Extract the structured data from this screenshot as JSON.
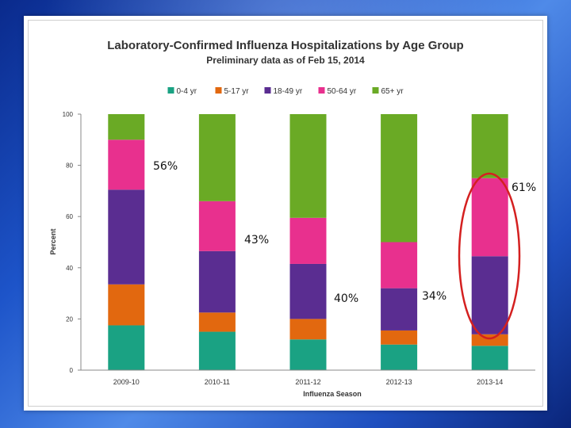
{
  "chart_data": {
    "type": "bar",
    "stacked": true,
    "title": "Laboratory-Confirmed Influenza Hospitalizations by Age Group",
    "subtitle": "Preliminary  data  as of Feb 15, 2014",
    "xlabel": "Influenza Season",
    "ylabel": "Percent",
    "ylim": [
      0,
      100
    ],
    "yticks": [
      0,
      20,
      40,
      60,
      80,
      100
    ],
    "grid": false,
    "legend_position": "top",
    "categories": [
      "2009-10",
      "2010-11",
      "2011-12",
      "2012-13",
      "2013-14"
    ],
    "series": [
      {
        "name": "0-4 yr",
        "color": "#1aa283",
        "values": [
          17.5,
          15,
          12,
          10,
          9.5
        ]
      },
      {
        "name": "5-17 yr",
        "color": "#e2680f",
        "values": [
          16,
          7.5,
          8,
          5.5,
          4.5
        ]
      },
      {
        "name": "18-49 yr",
        "color": "#5a2d91",
        "values": [
          37,
          24,
          21.5,
          16.5,
          30.5
        ]
      },
      {
        "name": "50-64 yr",
        "color": "#e8308e",
        "values": [
          19.5,
          19.5,
          18,
          18,
          30.5
        ]
      },
      {
        "name": "65+ yr",
        "color": "#6aaa25",
        "values": [
          10,
          34,
          40.5,
          50,
          25
        ]
      }
    ],
    "annotations": [
      {
        "text": "56%",
        "near_category": "2009-10"
      },
      {
        "text": "61%",
        "near_category": "2013-14"
      },
      {
        "text": "43%",
        "near_category": "2010-11"
      },
      {
        "text": "40%",
        "near_category": "2011-12"
      },
      {
        "text": "34%",
        "near_category": "2012-13"
      }
    ],
    "highlight": {
      "shape": "ellipse",
      "color": "#d42020",
      "category": "2013-14"
    }
  }
}
